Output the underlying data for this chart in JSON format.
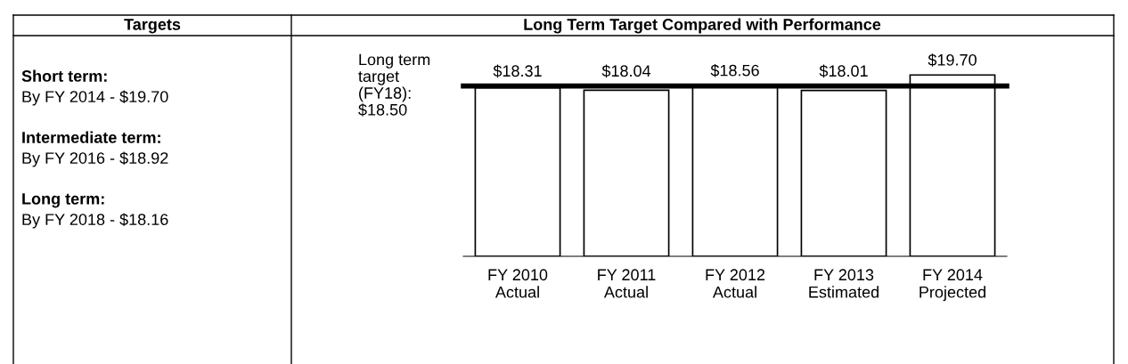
{
  "chart_data": [
    {
      "type": "other",
      "title": "Targets",
      "annotations": [
        "Short term:",
        "By FY 2014 - $19.70",
        "Intermediate term:",
        "By FY 2016 - $18.92",
        "Long term:",
        "By FY 2018 - $18.16"
      ]
    },
    {
      "type": "bar",
      "title": "Long Term Target Compared with Performance",
      "categories": [
        "FY 2010\nActual",
        "FY 2011\nActual",
        "FY 2012\nActual",
        "FY 2013\nEstimated",
        "FY 2014\nProjected"
      ],
      "values": [
        18.31,
        18.04,
        18.56,
        18.01,
        19.7
      ],
      "value_labels": [
        "$18.31",
        "$18.04",
        "$18.56",
        "$18.01",
        "$19.70"
      ],
      "color": "#ffffff",
      "tick_labels": "x",
      "ref_lines": [
        {
          "axis": "y",
          "value": 18.5,
          "label": "Long term\ntarget\n(FY18):\n$18.50",
          "color": "#000000"
        }
      ],
      "legend": false,
      "grid": false
    }
  ]
}
